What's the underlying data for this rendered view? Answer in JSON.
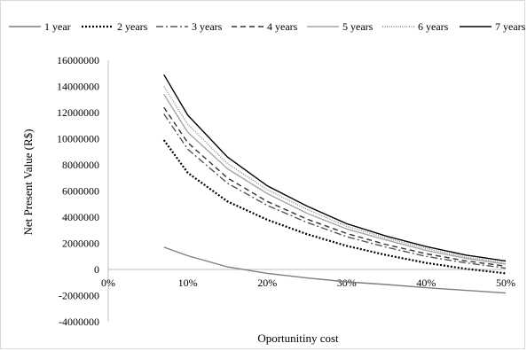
{
  "chart_data": {
    "type": "line",
    "xlabel": "Oportunitiny cost",
    "ylabel": "Net Present Value (R$)",
    "xlim": [
      0,
      0.5
    ],
    "ylim": [
      -4000000,
      16000000
    ],
    "x_ticks": [
      "0%",
      "10%",
      "20%",
      "30%",
      "40%",
      "50%"
    ],
    "x_tick_values": [
      0,
      0.1,
      0.2,
      0.3,
      0.4,
      0.5
    ],
    "y_ticks": [
      "16000000",
      "14000000",
      "12000000",
      "10000000",
      "8000000",
      "6000000",
      "4000000",
      "2000000",
      "0",
      "-2000000",
      "-4000000"
    ],
    "y_tick_values": [
      16000000,
      14000000,
      12000000,
      10000000,
      8000000,
      6000000,
      4000000,
      2000000,
      0,
      -2000000,
      -4000000
    ],
    "grid": false,
    "legend_position": "top",
    "x": [
      0.07,
      0.1,
      0.15,
      0.2,
      0.25,
      0.3,
      0.35,
      0.4,
      0.45,
      0.5
    ],
    "series": [
      {
        "name": "1 year",
        "color": "#7f7f7f",
        "dash": "solid",
        "values": [
          1700000,
          1050000,
          200000,
          -300000,
          -650000,
          -950000,
          -1150000,
          -1400000,
          -1600000,
          -1800000
        ]
      },
      {
        "name": "2 years",
        "color": "#000000",
        "dash": "dotted",
        "values": [
          9900000,
          7400000,
          5200000,
          3800000,
          2700000,
          1800000,
          1100000,
          500000,
          50000,
          -300000
        ]
      },
      {
        "name": "3 years",
        "color": "#555555",
        "dash": "dash-dot",
        "values": [
          11900000,
          9200000,
          6600000,
          4900000,
          3600000,
          2500000,
          1700000,
          1000000,
          500000,
          100000
        ]
      },
      {
        "name": "4 years",
        "color": "#333333",
        "dash": "dashed",
        "values": [
          12400000,
          9700000,
          7000000,
          5200000,
          3850000,
          2750000,
          1900000,
          1200000,
          650000,
          250000
        ]
      },
      {
        "name": "5 years",
        "color": "#a6a6a6",
        "dash": "solid",
        "values": [
          13400000,
          10500000,
          7700000,
          5800000,
          4300000,
          3100000,
          2250000,
          1450000,
          850000,
          400000
        ]
      },
      {
        "name": "6 years",
        "color": "#888888",
        "dash": "fine-dotted",
        "values": [
          14000000,
          11100000,
          8100000,
          6100000,
          4600000,
          3300000,
          2400000,
          1600000,
          950000,
          500000
        ]
      },
      {
        "name": "7 years",
        "color": "#000000",
        "dash": "solid",
        "values": [
          14900000,
          11800000,
          8600000,
          6400000,
          4850000,
          3500000,
          2550000,
          1750000,
          1100000,
          650000
        ]
      }
    ]
  }
}
